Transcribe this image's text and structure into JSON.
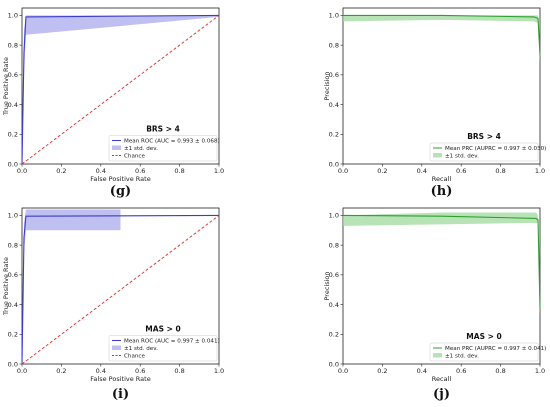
{
  "panels": [
    {
      "caption": "(g)",
      "chart_data": {
        "type": "line",
        "title": "BRS > 4",
        "xlabel": "False Positive Rate",
        "ylabel": "True Positive Rate",
        "xlim": [
          0,
          1
        ],
        "ylim": [
          0,
          1.05
        ],
        "xticks": [
          "0.0",
          "0.2",
          "0.4",
          "0.6",
          "0.8",
          "1.0"
        ],
        "yticks": [
          "0.0",
          "0.2",
          "0.4",
          "0.6",
          "0.8",
          "1.0"
        ],
        "legend_placement": "lower-right",
        "series": [
          {
            "name": "Mean ROC (AUC = 0.993 ± 0.068)",
            "x": [
              0,
              0.01,
              0.02,
              1.0
            ],
            "y": [
              0,
              0.75,
              0.99,
              1.0
            ],
            "color": "#3b3bcc"
          },
          {
            "name": "±1 std. dev.",
            "fill": true,
            "x": [
              0,
              0.01,
              0.02,
              1.0
            ],
            "upper": [
              0,
              0.9,
              1.0,
              1.0
            ],
            "lower": [
              0,
              0.6,
              0.87,
              0.99
            ],
            "color": "#aaaaee"
          },
          {
            "name": "Chance",
            "x": [
              0,
              1
            ],
            "y": [
              0,
              1
            ],
            "color": "#e0302a",
            "dashed": true
          }
        ]
      }
    },
    {
      "caption": "(h)",
      "chart_data": {
        "type": "line",
        "title": "BRS > 4",
        "xlabel": "Recall",
        "ylabel": "Precision",
        "xlim": [
          0,
          1
        ],
        "ylim": [
          0,
          1.05
        ],
        "xticks": [
          "0.0",
          "0.2",
          "0.4",
          "0.6",
          "0.8",
          "1.0"
        ],
        "yticks": [
          "0.0",
          "0.2",
          "0.4",
          "0.6",
          "0.8",
          "1.0"
        ],
        "legend_placement": "lower-right",
        "series": [
          {
            "name": "Mean PRC (AUPRC = 0.997 ± 0.030)",
            "x": [
              0,
              0.5,
              0.97,
              0.99,
              1.0
            ],
            "y": [
              1.0,
              1.0,
              0.99,
              0.98,
              0.73
            ],
            "color": "#2ca02c"
          },
          {
            "name": "±1 std. dev.",
            "fill": true,
            "x": [
              0,
              0.5,
              0.97,
              0.99,
              1.0
            ],
            "upper": [
              1.0,
              1.0,
              1.0,
              1.0,
              0.8
            ],
            "lower": [
              0.96,
              0.97,
              0.96,
              0.95,
              0.68
            ],
            "color": "#9fd99f"
          }
        ]
      }
    },
    {
      "caption": "(i)",
      "chart_data": {
        "type": "line",
        "title": "MAS > 0",
        "xlabel": "False Positive Rate",
        "ylabel": "True Positive Rate",
        "xlim": [
          0,
          1
        ],
        "ylim": [
          0,
          1.05
        ],
        "xticks": [
          "0.0",
          "0.2",
          "0.4",
          "0.6",
          "0.8",
          "1.0"
        ],
        "yticks": [
          "0.0",
          "0.2",
          "0.4",
          "0.6",
          "0.8",
          "1.0"
        ],
        "legend_placement": "lower-right",
        "series": [
          {
            "name": "Mean ROC (AUC = 0.997 ± 0.041)",
            "x": [
              0,
              0.01,
              0.02,
              1.0
            ],
            "y": [
              0,
              0.85,
              0.995,
              1.0
            ],
            "color": "#3b3bcc"
          },
          {
            "name": "±1 std. dev.",
            "fill": true,
            "x": [
              0,
              0.01,
              0.02,
              0.5,
              0.5,
              1.0
            ],
            "upper": [
              0,
              0.95,
              1.04,
              1.04,
              1.0,
              1.0
            ],
            "lower": [
              0,
              0.75,
              0.9,
              0.9,
              1.0,
              1.0
            ],
            "color": "#aaaaee"
          },
          {
            "name": "Chance",
            "x": [
              0,
              1
            ],
            "y": [
              0,
              1
            ],
            "color": "#e0302a",
            "dashed": true
          }
        ]
      }
    },
    {
      "caption": "(j)",
      "chart_data": {
        "type": "line",
        "title": "MAS > 0",
        "xlabel": "Recall",
        "ylabel": "Precision",
        "xlim": [
          0,
          1
        ],
        "ylim": [
          0,
          1.05
        ],
        "xticks": [
          "0.0",
          "0.2",
          "0.4",
          "0.6",
          "0.8",
          "1.0"
        ],
        "yticks": [
          "0.0",
          "0.2",
          "0.4",
          "0.6",
          "0.8",
          "1.0"
        ],
        "legend_placement": "lower-right",
        "series": [
          {
            "name": "Mean PRC (AUPRC = 0.997 ± 0.041)",
            "x": [
              0,
              0.5,
              0.98,
              0.99,
              1.0
            ],
            "y": [
              1.0,
              0.995,
              0.98,
              0.97,
              0.37
            ],
            "color": "#2ca02c"
          },
          {
            "name": "±1 std. dev.",
            "fill": true,
            "x": [
              0,
              0.5,
              0.98,
              0.99,
              1.0
            ],
            "upper": [
              1.0,
              1.02,
              1.02,
              1.0,
              0.42
            ],
            "lower": [
              0.93,
              0.94,
              0.95,
              0.95,
              0.32
            ],
            "color": "#9fd99f"
          }
        ]
      }
    }
  ]
}
